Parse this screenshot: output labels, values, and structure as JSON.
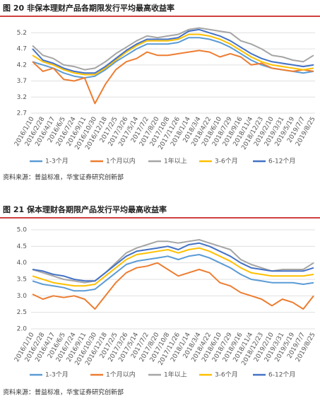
{
  "chart_data": [
    {
      "type": "line",
      "title": "图 20 非保本理财产品各期限发行平均最高收益率",
      "source": "资料来源：普益标准，华宝证券研究创新部",
      "categories": [
        "2016/1/10",
        "2016/2/28",
        "2016/4/17",
        "2016/6/5",
        "2016/7/24",
        "2016/9/11",
        "2016/10/30",
        "2016/12/18",
        "2017/2/5",
        "2017/3/26",
        "2017/5/14",
        "2017/7/2",
        "2017/8/20",
        "2017/10/8",
        "2017/11/26",
        "2018/1/14",
        "2018/3/4",
        "2018/4/22",
        "2018/6/10",
        "2018/7/29",
        "2018/9/16",
        "2018/11/4",
        "2018/12/23",
        "2019/2/10",
        "2019/3/31",
        "2019/5/19",
        "2019/7/7",
        "2019/8/25"
      ],
      "ylim": [
        2.7,
        5.45
      ],
      "yticks": [
        2.7,
        3.2,
        3.7,
        4.2,
        4.7,
        5.2
      ],
      "grid": true,
      "series": [
        {
          "name": "1-3个月",
          "color": "#5b9bd5",
          "values": [
            4.3,
            4.2,
            4.1,
            3.95,
            3.85,
            3.8,
            3.85,
            4.05,
            4.3,
            4.5,
            4.7,
            4.85,
            4.85,
            4.85,
            4.9,
            5.05,
            5.05,
            5.0,
            4.9,
            4.75,
            4.55,
            4.35,
            4.2,
            4.1,
            4.05,
            4.0,
            3.95,
            4.0
          ]
        },
        {
          "name": "1个月以内",
          "color": "#ed7d31",
          "values": [
            4.3,
            4.0,
            4.1,
            3.75,
            3.7,
            3.8,
            3.0,
            3.6,
            4.05,
            4.3,
            4.4,
            4.6,
            4.5,
            4.5,
            4.55,
            4.6,
            4.65,
            4.6,
            4.45,
            4.55,
            4.45,
            4.2,
            4.25,
            4.1,
            4.05,
            4.0,
            4.05,
            4.0
          ]
        },
        {
          "name": "1年以上",
          "color": "#a5a5a5",
          "values": [
            4.8,
            4.5,
            4.4,
            4.2,
            4.15,
            4.05,
            4.1,
            4.3,
            4.55,
            4.75,
            4.95,
            5.1,
            5.05,
            5.1,
            5.15,
            5.3,
            5.35,
            5.3,
            5.25,
            5.2,
            4.95,
            4.85,
            4.7,
            4.5,
            4.45,
            4.35,
            4.3,
            4.5
          ]
        },
        {
          "name": "3-6个月",
          "color": "#ffc000",
          "values": [
            4.5,
            4.3,
            4.2,
            4.05,
            3.95,
            3.9,
            3.9,
            4.1,
            4.35,
            4.6,
            4.8,
            4.95,
            4.95,
            4.95,
            5.0,
            5.15,
            5.15,
            5.1,
            5.0,
            4.85,
            4.65,
            4.45,
            4.3,
            4.2,
            4.15,
            4.1,
            4.05,
            4.1
          ]
        },
        {
          "name": "6-12个月",
          "color": "#4472c4",
          "values": [
            4.7,
            4.35,
            4.25,
            4.1,
            4.0,
            3.95,
            3.95,
            4.15,
            4.4,
            4.65,
            4.85,
            5.0,
            5.0,
            5.0,
            5.05,
            5.25,
            5.3,
            5.2,
            5.1,
            4.95,
            4.75,
            4.55,
            4.4,
            4.3,
            4.25,
            4.2,
            4.15,
            4.2
          ]
        }
      ]
    },
    {
      "type": "line",
      "title": "图 21 保本理财各期限产品发行平均最高收益率",
      "source": "资料来源：普益标准，华宝证券研究创新部",
      "categories": [
        "2016/1/10",
        "2016/2/28",
        "2016/4/17",
        "2016/6/5",
        "2016/7/24",
        "2016/9/11",
        "2016/10/30",
        "2016/12/18",
        "2017/2/5",
        "2017/3/26",
        "2017/5/14",
        "2017/7/2",
        "2017/8/20",
        "2017/10/8",
        "2017/11/26",
        "2018/1/14",
        "2018/3/4",
        "2018/4/22",
        "2018/6/10",
        "2018/7/29",
        "2018/9/16",
        "2018/11/4",
        "2018/12/23",
        "2019/2/10",
        "2019/3/31",
        "2019/5/19",
        "2019/7/7",
        "2019/8/25"
      ],
      "ylim": [
        2,
        5
      ],
      "yticks": [
        {
          "value": 2,
          "label": "2.0"
        },
        2.5,
        {
          "value": 3,
          "label": "3.0"
        },
        3.5,
        {
          "value": 4,
          "label": "4.0"
        },
        4.5,
        {
          "value": 5,
          "label": "5.0"
        }
      ],
      "grid": true,
      "series": [
        {
          "name": "1-3个月",
          "color": "#5b9bd5",
          "values": [
            3.45,
            3.35,
            3.3,
            3.25,
            3.15,
            3.15,
            3.2,
            3.45,
            3.7,
            3.95,
            4.05,
            4.1,
            4.15,
            4.2,
            4.1,
            4.2,
            4.25,
            4.15,
            4.0,
            3.85,
            3.65,
            3.5,
            3.45,
            3.4,
            3.4,
            3.4,
            3.35,
            3.4
          ]
        },
        {
          "name": "1个月以内",
          "color": "#ed7d31",
          "values": [
            3.05,
            2.9,
            3.0,
            2.95,
            3.0,
            2.9,
            2.6,
            3.0,
            3.4,
            3.7,
            3.85,
            3.9,
            4.0,
            3.8,
            3.6,
            3.7,
            3.8,
            3.7,
            3.4,
            3.3,
            3.1,
            3.0,
            2.9,
            2.7,
            2.9,
            2.8,
            2.6,
            3.0
          ]
        },
        {
          "name": "1年以上",
          "color": "#a5a5a5",
          "values": [
            3.8,
            3.7,
            3.6,
            3.5,
            3.45,
            3.4,
            3.45,
            3.7,
            4.0,
            4.3,
            4.45,
            4.55,
            4.65,
            4.65,
            4.6,
            4.65,
            4.7,
            4.6,
            4.5,
            4.4,
            4.1,
            3.95,
            3.85,
            3.75,
            3.8,
            3.8,
            3.8,
            4.0
          ]
        },
        {
          "name": "3-6个月",
          "color": "#ffc000",
          "values": [
            3.6,
            3.5,
            3.4,
            3.35,
            3.3,
            3.3,
            3.35,
            3.6,
            3.85,
            4.1,
            4.25,
            4.3,
            4.35,
            4.4,
            4.3,
            4.4,
            4.45,
            4.35,
            4.2,
            4.05,
            3.85,
            3.7,
            3.65,
            3.6,
            3.6,
            3.6,
            3.6,
            3.65
          ]
        },
        {
          "name": "6-12个月",
          "color": "#4472c4",
          "values": [
            3.8,
            3.75,
            3.65,
            3.6,
            3.5,
            3.45,
            3.45,
            3.7,
            3.95,
            4.2,
            4.35,
            4.4,
            4.45,
            4.5,
            4.4,
            4.55,
            4.6,
            4.5,
            4.35,
            4.2,
            4.0,
            3.85,
            3.8,
            3.75,
            3.75,
            3.75,
            3.75,
            3.85
          ]
        }
      ]
    }
  ]
}
